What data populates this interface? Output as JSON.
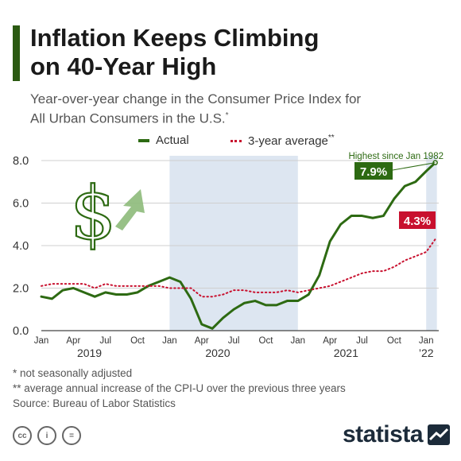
{
  "header": {
    "title_line1": "Inflation Keeps Climbing",
    "title_line2": "on 40-Year High",
    "subtitle_line1": "Year-over-year change in the Consumer Price Index for",
    "subtitle_line2": "All Urban Consumers in the U.S.",
    "subtitle_mark": "*"
  },
  "legend": {
    "actual": "Actual",
    "average": "3-year average",
    "average_mark": "**"
  },
  "chart_data": {
    "type": "line",
    "title": "Inflation Keeps Climbing on 40-Year High",
    "ylim": [
      0,
      8
    ],
    "yticks": [
      "0.0",
      "2.0",
      "4.0",
      "6.0",
      "8.0"
    ],
    "grid": true,
    "legend_position": "top",
    "x": [
      "Jan 2019",
      "Feb 2019",
      "Mar 2019",
      "Apr 2019",
      "May 2019",
      "Jun 2019",
      "Jul 2019",
      "Aug 2019",
      "Sep 2019",
      "Oct 2019",
      "Nov 2019",
      "Dec 2019",
      "Jan 2020",
      "Feb 2020",
      "Mar 2020",
      "Apr 2020",
      "May 2020",
      "Jun 2020",
      "Jul 2020",
      "Aug 2020",
      "Sep 2020",
      "Oct 2020",
      "Nov 2020",
      "Dec 2020",
      "Jan 2021",
      "Feb 2021",
      "Mar 2021",
      "Apr 2021",
      "May 2021",
      "Jun 2021",
      "Jul 2021",
      "Aug 2021",
      "Sep 2021",
      "Oct 2021",
      "Nov 2021",
      "Dec 2021",
      "Jan 2022"
    ],
    "month_ticks": [
      "Jan",
      "Apr",
      "Jul",
      "Oct",
      "Jan",
      "Apr",
      "Jul",
      "Oct",
      "Jan",
      "Apr",
      "Jul",
      "Oct",
      "Jan"
    ],
    "year_labels": [
      "2019",
      "2020",
      "2021",
      "’22"
    ],
    "series": [
      {
        "name": "Actual",
        "color": "#2d6a12",
        "values": [
          1.6,
          1.5,
          1.9,
          2.0,
          1.8,
          1.6,
          1.8,
          1.7,
          1.7,
          1.8,
          2.1,
          2.3,
          2.5,
          2.3,
          1.5,
          0.3,
          0.1,
          0.6,
          1.0,
          1.3,
          1.4,
          1.2,
          1.2,
          1.4,
          1.4,
          1.7,
          2.6,
          4.2,
          5.0,
          5.4,
          5.4,
          5.3,
          5.4,
          6.2,
          6.8,
          7.0,
          7.5
        ]
      },
      {
        "name": "3-year average",
        "color": "#c8102e",
        "values": [
          2.1,
          2.2,
          2.2,
          2.2,
          2.2,
          2.0,
          2.2,
          2.1,
          2.1,
          2.1,
          2.1,
          2.1,
          2.0,
          2.0,
          2.0,
          1.6,
          1.6,
          1.7,
          1.9,
          1.9,
          1.8,
          1.8,
          1.8,
          1.9,
          1.8,
          1.9,
          2.0,
          2.1,
          2.3,
          2.5,
          2.7,
          2.8,
          2.8,
          3.0,
          3.3,
          3.5,
          3.7
        ]
      }
    ],
    "shaded_periods": [
      {
        "from": "Jan 2020",
        "to": "Jan 2021"
      },
      {
        "from": "Jan 2022",
        "to": "Feb 2022"
      }
    ],
    "end_points": {
      "actual": 7.9,
      "average": 4.3
    },
    "annotations": {
      "highest": "Highest since Jan 1982",
      "actual_end_label": "7.9%",
      "average_end_label": "4.3%"
    }
  },
  "footnotes": {
    "note1": "*   not seasonally adjusted",
    "note2": "** average annual increase of the CPI-U over the previous three years",
    "source": "Source: Bureau of Labor Statistics"
  },
  "license_icons": [
    "cc",
    "i",
    "="
  ],
  "brand": {
    "name": "statista"
  },
  "colors": {
    "accent": "#2b5a12",
    "actual": "#2d6a12",
    "average": "#c8102e",
    "shade": "#dde6f1",
    "dollar": "#2d6a12",
    "arrow": "#8dba7a"
  }
}
